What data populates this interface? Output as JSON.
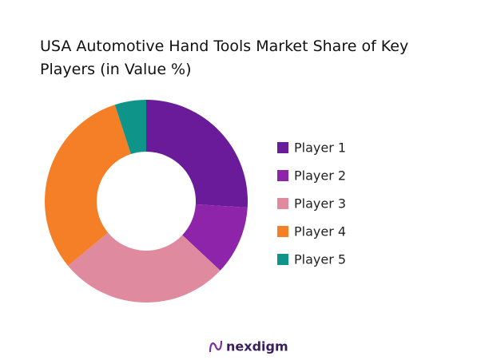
{
  "chart_data": {
    "type": "donut",
    "title": "USA Automotive Hand Tools Market Share of Key Players (in Value %)",
    "categories": [
      "Player 1",
      "Player 2",
      "Player 3",
      "Player 4",
      "Player 5"
    ],
    "values": [
      26,
      11,
      27,
      31,
      5
    ],
    "colors": [
      "#6a1b9a",
      "#8e24aa",
      "#e08aa0",
      "#f57f26",
      "#0e9488"
    ],
    "legend": "right"
  },
  "brand": "nexdigm"
}
